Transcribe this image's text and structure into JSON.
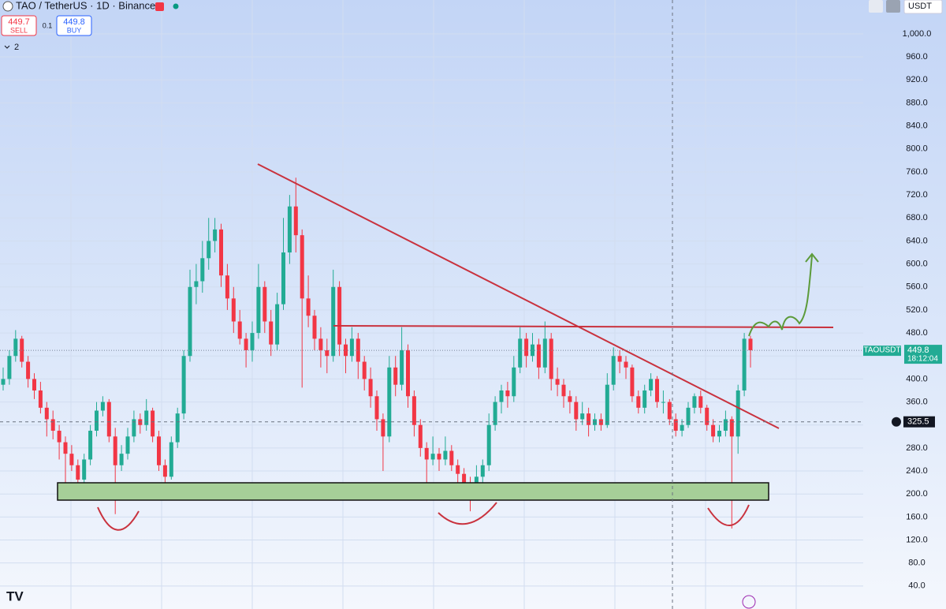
{
  "chart_data": {
    "type": "candlestick",
    "title": "TAO / TetherUS · 1D · Binance",
    "ylim": [
      0,
      1059
    ],
    "yticks": [
      {
        "value": 40,
        "label": "40.0"
      },
      {
        "value": 80,
        "label": "80.0"
      },
      {
        "value": 120,
        "label": "120.0"
      },
      {
        "value": 160,
        "label": "160.0"
      },
      {
        "value": 200,
        "label": "200.0"
      },
      {
        "value": 240,
        "label": "240.0"
      },
      {
        "value": 280,
        "label": "280.0"
      },
      {
        "value": 320,
        "label": "320.0"
      },
      {
        "value": 360,
        "label": "360.0"
      },
      {
        "value": 400,
        "label": "400.0"
      },
      {
        "value": 440,
        "label": "440.0"
      },
      {
        "value": 480,
        "label": "480.0"
      },
      {
        "value": 520,
        "label": "520.0"
      },
      {
        "value": 560,
        "label": "560.0"
      },
      {
        "value": 600,
        "label": "600.0"
      },
      {
        "value": 640,
        "label": "640.0"
      },
      {
        "value": 680,
        "label": "680.0"
      },
      {
        "value": 720,
        "label": "720.0"
      },
      {
        "value": 760,
        "label": "760.0"
      },
      {
        "value": 800,
        "label": "800.0"
      },
      {
        "value": 840,
        "label": "840.0"
      },
      {
        "value": 880,
        "label": "880.0"
      },
      {
        "value": 920,
        "label": "920.0"
      },
      {
        "value": 960,
        "label": "960.0"
      },
      {
        "value": 1000,
        "label": "1,000.0"
      }
    ],
    "grid": true,
    "up_color": "#22ab94",
    "down_color": "#f23645",
    "ohlc": [
      [
        390,
        420,
        380,
        400
      ],
      [
        400,
        450,
        390,
        440
      ],
      [
        440,
        485,
        430,
        470
      ],
      [
        470,
        475,
        420,
        430
      ],
      [
        430,
        440,
        385,
        400
      ],
      [
        400,
        410,
        365,
        380
      ],
      [
        380,
        395,
        340,
        350
      ],
      [
        350,
        360,
        300,
        330
      ],
      [
        330,
        345,
        295,
        310
      ],
      [
        310,
        320,
        260,
        290
      ],
      [
        290,
        300,
        200,
        270
      ],
      [
        270,
        285,
        240,
        250
      ],
      [
        250,
        260,
        215,
        225
      ],
      [
        225,
        270,
        220,
        260
      ],
      [
        260,
        320,
        250,
        310
      ],
      [
        310,
        360,
        300,
        345
      ],
      [
        345,
        370,
        335,
        360
      ],
      [
        360,
        365,
        290,
        300
      ],
      [
        300,
        315,
        165,
        250
      ],
      [
        250,
        285,
        240,
        270
      ],
      [
        270,
        315,
        260,
        300
      ],
      [
        300,
        345,
        290,
        330
      ],
      [
        330,
        340,
        305,
        320
      ],
      [
        320,
        365,
        310,
        345
      ],
      [
        345,
        350,
        290,
        300
      ],
      [
        300,
        310,
        240,
        250
      ],
      [
        250,
        260,
        215,
        230
      ],
      [
        230,
        300,
        225,
        290
      ],
      [
        290,
        350,
        280,
        340
      ],
      [
        340,
        450,
        330,
        440
      ],
      [
        440,
        590,
        430,
        560
      ],
      [
        560,
        600,
        530,
        570
      ],
      [
        570,
        640,
        550,
        610
      ],
      [
        610,
        680,
        590,
        640
      ],
      [
        640,
        680,
        620,
        660
      ],
      [
        660,
        670,
        560,
        580
      ],
      [
        580,
        600,
        520,
        540
      ],
      [
        540,
        560,
        480,
        500
      ],
      [
        500,
        520,
        460,
        470
      ],
      [
        470,
        480,
        420,
        450
      ],
      [
        450,
        500,
        430,
        480
      ],
      [
        480,
        600,
        470,
        560
      ],
      [
        560,
        570,
        480,
        500
      ],
      [
        500,
        520,
        440,
        460
      ],
      [
        460,
        550,
        450,
        530
      ],
      [
        530,
        680,
        520,
        620
      ],
      [
        620,
        720,
        600,
        700
      ],
      [
        700,
        750,
        620,
        650
      ],
      [
        650,
        660,
        385,
        540
      ],
      [
        540,
        580,
        490,
        510
      ],
      [
        510,
        520,
        450,
        470
      ],
      [
        470,
        490,
        420,
        450
      ],
      [
        450,
        470,
        410,
        440
      ],
      [
        440,
        590,
        430,
        560
      ],
      [
        560,
        570,
        440,
        460
      ],
      [
        460,
        470,
        410,
        440
      ],
      [
        440,
        490,
        430,
        470
      ],
      [
        470,
        480,
        400,
        430
      ],
      [
        430,
        440,
        380,
        400
      ],
      [
        400,
        420,
        350,
        370
      ],
      [
        370,
        380,
        310,
        330
      ],
      [
        330,
        340,
        240,
        300
      ],
      [
        300,
        440,
        290,
        420
      ],
      [
        420,
        440,
        370,
        390
      ],
      [
        390,
        490,
        380,
        450
      ],
      [
        450,
        460,
        350,
        370
      ],
      [
        370,
        380,
        300,
        320
      ],
      [
        320,
        330,
        265,
        280
      ],
      [
        280,
        290,
        215,
        260
      ],
      [
        260,
        300,
        250,
        270
      ],
      [
        270,
        280,
        240,
        260
      ],
      [
        260,
        300,
        250,
        275
      ],
      [
        275,
        285,
        240,
        250
      ],
      [
        250,
        260,
        220,
        235
      ],
      [
        235,
        245,
        200,
        220
      ],
      [
        220,
        230,
        170,
        210
      ],
      [
        210,
        250,
        200,
        230
      ],
      [
        230,
        260,
        220,
        250
      ],
      [
        250,
        340,
        240,
        320
      ],
      [
        320,
        370,
        310,
        360
      ],
      [
        360,
        390,
        340,
        380
      ],
      [
        380,
        395,
        350,
        370
      ],
      [
        370,
        440,
        360,
        420
      ],
      [
        420,
        490,
        410,
        470
      ],
      [
        470,
        480,
        420,
        440
      ],
      [
        440,
        480,
        430,
        460
      ],
      [
        460,
        470,
        400,
        420
      ],
      [
        420,
        500,
        410,
        470
      ],
      [
        470,
        480,
        380,
        400
      ],
      [
        400,
        420,
        370,
        390
      ],
      [
        390,
        400,
        350,
        370
      ],
      [
        370,
        380,
        340,
        360
      ],
      [
        360,
        370,
        310,
        330
      ],
      [
        330,
        360,
        320,
        340
      ],
      [
        340,
        350,
        300,
        320
      ],
      [
        320,
        340,
        310,
        330
      ],
      [
        330,
        340,
        310,
        320
      ],
      [
        320,
        410,
        315,
        390
      ],
      [
        390,
        455,
        380,
        440
      ],
      [
        440,
        450,
        410,
        430
      ],
      [
        430,
        440,
        400,
        420
      ],
      [
        420,
        425,
        360,
        370
      ],
      [
        370,
        380,
        340,
        350
      ],
      [
        350,
        390,
        340,
        380
      ],
      [
        380,
        410,
        370,
        400
      ],
      [
        400,
        405,
        350,
        360
      ],
      [
        360,
        380,
        340,
        360
      ],
      [
        360,
        365,
        320,
        330
      ],
      [
        330,
        340,
        300,
        310
      ],
      [
        310,
        330,
        300,
        320
      ],
      [
        320,
        360,
        315,
        350
      ],
      [
        350,
        375,
        340,
        370
      ],
      [
        370,
        380,
        340,
        350
      ],
      [
        350,
        355,
        310,
        320
      ],
      [
        320,
        330,
        290,
        300
      ],
      [
        300,
        320,
        290,
        310
      ],
      [
        310,
        345,
        300,
        330
      ],
      [
        330,
        335,
        140,
        300
      ],
      [
        300,
        390,
        270,
        380
      ],
      [
        380,
        480,
        370,
        470
      ],
      [
        470,
        475,
        420,
        450
      ]
    ],
    "symbol": "TAOUSDT",
    "last_price": 449.8,
    "countdown": "18:12:04",
    "crosshair_price": 325.5
  },
  "toolbar": {
    "sell_price": 449.7,
    "sell": "SELL",
    "spread": 0.1,
    "buy_price": 449.8,
    "buy": "BUY",
    "indicators": 2,
    "currency": "USDT"
  }
}
